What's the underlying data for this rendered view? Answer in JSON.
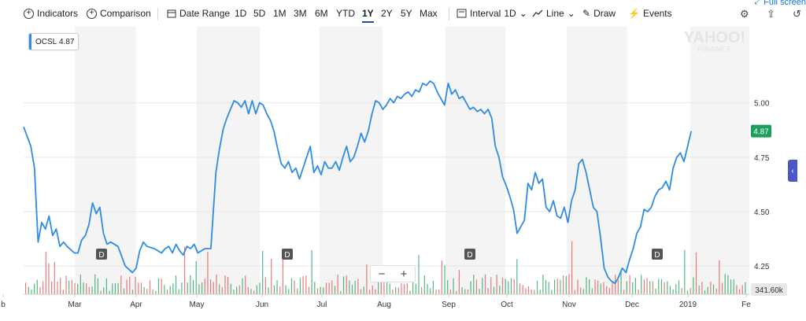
{
  "toolbar": {
    "indicators": "Indicators",
    "comparison": "Comparison",
    "date_range": "Date Range",
    "ranges": [
      "1D",
      "5D",
      "1M",
      "3M",
      "6M",
      "YTD",
      "1Y",
      "2Y",
      "5Y",
      "Max"
    ],
    "active_range": "1Y",
    "interval_label": "Interval",
    "interval_value": "1D",
    "line": "Line",
    "draw": "Draw",
    "events": "Events",
    "full_screen": "Full screen"
  },
  "badge": {
    "symbol": "OCSL",
    "value": "4.87"
  },
  "watermark": {
    "line1": "YAHOO!",
    "line2": "FINANCE"
  },
  "colors": {
    "line": "#2e8be6",
    "last_price": "#1aa05a",
    "vol_up": "#1aa05a",
    "vol_down": "#e25050",
    "band": "#f4f4f4",
    "dividend": "#555555"
  },
  "chart_data": {
    "type": "line",
    "series": [
      {
        "name": "OCSL",
        "last": 4.87
      }
    ],
    "ylim": [
      4.12,
      5.35
    ],
    "y_ticks": [
      "5.00",
      "4.75",
      "4.50",
      "4.25"
    ],
    "x_tick_labels": [
      "b",
      "Mar",
      "Apr",
      "May",
      "Jun",
      "Jul",
      "Aug",
      "Sep",
      "Oct",
      "Nov",
      "Dec",
      "2019",
      "Fe"
    ],
    "last_price_label": "4.87",
    "volume_label": "341.60k",
    "dividend_marker": "D",
    "price_path": [
      [
        0,
        4.89
      ],
      [
        0.01,
        4.8
      ],
      [
        0.015,
        4.7
      ],
      [
        0.02,
        4.36
      ],
      [
        0.025,
        4.45
      ],
      [
        0.03,
        4.42
      ],
      [
        0.035,
        4.48
      ],
      [
        0.04,
        4.39
      ],
      [
        0.045,
        4.42
      ],
      [
        0.05,
        4.34
      ],
      [
        0.055,
        4.36
      ],
      [
        0.06,
        4.34
      ],
      [
        0.07,
        4.31
      ],
      [
        0.075,
        4.31
      ],
      [
        0.08,
        4.37
      ],
      [
        0.085,
        4.39
      ],
      [
        0.09,
        4.44
      ],
      [
        0.095,
        4.54
      ],
      [
        0.1,
        4.49
      ],
      [
        0.105,
        4.52
      ],
      [
        0.11,
        4.4
      ],
      [
        0.115,
        4.35
      ],
      [
        0.12,
        4.36
      ],
      [
        0.13,
        4.34
      ],
      [
        0.14,
        4.25
      ],
      [
        0.15,
        4.22
      ],
      [
        0.155,
        4.24
      ],
      [
        0.16,
        4.32
      ],
      [
        0.165,
        4.36
      ],
      [
        0.17,
        4.34
      ],
      [
        0.18,
        4.33
      ],
      [
        0.19,
        4.31
      ],
      [
        0.195,
        4.33
      ],
      [
        0.2,
        4.34
      ],
      [
        0.205,
        4.31
      ],
      [
        0.21,
        4.35
      ],
      [
        0.215,
        4.32
      ],
      [
        0.22,
        4.3
      ],
      [
        0.225,
        4.34
      ],
      [
        0.23,
        4.33
      ],
      [
        0.235,
        4.35
      ],
      [
        0.24,
        4.31
      ],
      [
        0.25,
        4.33
      ],
      [
        0.258,
        4.33
      ],
      [
        0.265,
        4.68
      ],
      [
        0.27,
        4.79
      ],
      [
        0.275,
        4.88
      ],
      [
        0.28,
        4.93
      ],
      [
        0.285,
        4.97
      ],
      [
        0.29,
        5.01
      ],
      [
        0.295,
        5.0
      ],
      [
        0.3,
        4.98
      ],
      [
        0.305,
        5.01
      ],
      [
        0.31,
        4.95
      ],
      [
        0.315,
        5.01
      ],
      [
        0.32,
        4.95
      ],
      [
        0.325,
        5.0
      ],
      [
        0.33,
        4.99
      ],
      [
        0.335,
        4.95
      ],
      [
        0.34,
        4.92
      ],
      [
        0.345,
        4.87
      ],
      [
        0.35,
        4.79
      ],
      [
        0.355,
        4.72
      ],
      [
        0.36,
        4.7
      ],
      [
        0.365,
        4.73
      ],
      [
        0.37,
        4.68
      ],
      [
        0.375,
        4.7
      ],
      [
        0.38,
        4.65
      ],
      [
        0.385,
        4.7
      ],
      [
        0.39,
        4.75
      ],
      [
        0.395,
        4.8
      ],
      [
        0.4,
        4.68
      ],
      [
        0.405,
        4.71
      ],
      [
        0.41,
        4.67
      ],
      [
        0.415,
        4.73
      ],
      [
        0.42,
        4.7
      ],
      [
        0.425,
        4.7
      ],
      [
        0.43,
        4.73
      ],
      [
        0.435,
        4.69
      ],
      [
        0.44,
        4.75
      ],
      [
        0.445,
        4.8
      ],
      [
        0.45,
        4.73
      ],
      [
        0.455,
        4.75
      ],
      [
        0.46,
        4.8
      ],
      [
        0.465,
        4.86
      ],
      [
        0.47,
        4.82
      ],
      [
        0.475,
        4.87
      ],
      [
        0.48,
        4.95
      ],
      [
        0.485,
        5.01
      ],
      [
        0.49,
        5.0
      ],
      [
        0.495,
        4.97
      ],
      [
        0.5,
        4.99
      ],
      [
        0.505,
        5.02
      ],
      [
        0.51,
        5.0
      ],
      [
        0.515,
        5.03
      ],
      [
        0.52,
        5.02
      ],
      [
        0.525,
        5.04
      ],
      [
        0.53,
        5.05
      ],
      [
        0.535,
        5.03
      ],
      [
        0.54,
        5.06
      ],
      [
        0.545,
        5.05
      ],
      [
        0.55,
        5.09
      ],
      [
        0.555,
        5.08
      ],
      [
        0.56,
        5.1
      ],
      [
        0.565,
        5.09
      ],
      [
        0.57,
        5.05
      ],
      [
        0.575,
        5.02
      ],
      [
        0.58,
        4.99
      ],
      [
        0.585,
        5.09
      ],
      [
        0.59,
        5.04
      ],
      [
        0.595,
        5.06
      ],
      [
        0.6,
        5.02
      ],
      [
        0.605,
        5.03
      ],
      [
        0.61,
        5.0
      ],
      [
        0.615,
        4.97
      ],
      [
        0.62,
        4.98
      ],
      [
        0.625,
        4.96
      ],
      [
        0.63,
        4.97
      ],
      [
        0.635,
        4.95
      ],
      [
        0.64,
        4.97
      ],
      [
        0.645,
        4.93
      ],
      [
        0.65,
        4.8
      ],
      [
        0.655,
        4.75
      ],
      [
        0.66,
        4.66
      ],
      [
        0.665,
        4.62
      ],
      [
        0.67,
        4.57
      ],
      [
        0.675,
        4.51
      ],
      [
        0.68,
        4.4
      ],
      [
        0.685,
        4.43
      ],
      [
        0.69,
        4.46
      ],
      [
        0.695,
        4.63
      ],
      [
        0.7,
        4.6
      ],
      [
        0.705,
        4.68
      ],
      [
        0.71,
        4.63
      ],
      [
        0.715,
        4.65
      ],
      [
        0.72,
        4.52
      ],
      [
        0.725,
        4.5
      ],
      [
        0.73,
        4.55
      ],
      [
        0.735,
        4.48
      ],
      [
        0.74,
        4.47
      ],
      [
        0.745,
        4.52
      ],
      [
        0.75,
        4.45
      ],
      [
        0.755,
        4.55
      ],
      [
        0.76,
        4.6
      ],
      [
        0.765,
        4.72
      ],
      [
        0.77,
        4.74
      ],
      [
        0.775,
        4.68
      ],
      [
        0.78,
        4.6
      ],
      [
        0.785,
        4.52
      ],
      [
        0.79,
        4.5
      ],
      [
        0.795,
        4.38
      ],
      [
        0.8,
        4.24
      ],
      [
        0.805,
        4.2
      ],
      [
        0.81,
        4.18
      ],
      [
        0.815,
        4.17
      ],
      [
        0.82,
        4.2
      ],
      [
        0.825,
        4.24
      ],
      [
        0.83,
        4.22
      ],
      [
        0.835,
        4.28
      ],
      [
        0.84,
        4.33
      ],
      [
        0.845,
        4.4
      ],
      [
        0.85,
        4.43
      ],
      [
        0.855,
        4.51
      ],
      [
        0.86,
        4.5
      ],
      [
        0.865,
        4.52
      ],
      [
        0.87,
        4.57
      ],
      [
        0.875,
        4.6
      ],
      [
        0.88,
        4.61
      ],
      [
        0.885,
        4.64
      ],
      [
        0.89,
        4.6
      ],
      [
        0.895,
        4.7
      ],
      [
        0.9,
        4.75
      ],
      [
        0.905,
        4.77
      ],
      [
        0.91,
        4.73
      ],
      [
        0.915,
        4.8
      ],
      [
        0.92,
        4.87
      ]
    ]
  }
}
